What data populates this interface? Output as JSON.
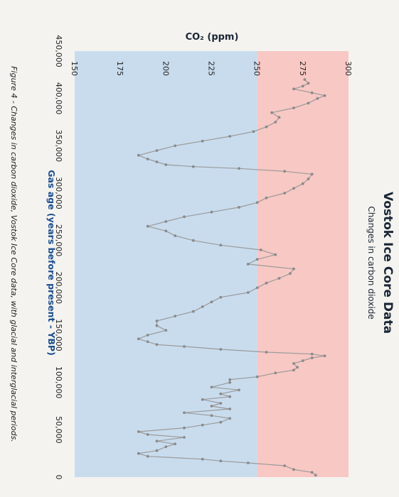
{
  "chart_data": {
    "type": "line",
    "title": "Vostok Ice Core Data",
    "subtitle": "Changes in carbon dioxide",
    "xlabel": "Gas age (years before present - YBP)",
    "ylabel": "CO₂ (ppm)",
    "caption": "Figure 4 - Changes in carbon dioxide, Vostok Ice Core data, with glacial and interglacial periods.",
    "xlim": [
      450000,
      0
    ],
    "ylim": [
      150,
      300
    ],
    "x_ticks": [
      "450,000",
      "400,000",
      "350,000",
      "300,000",
      "250,000",
      "200,000",
      "150,000",
      "100,000",
      "50,000",
      "0"
    ],
    "y_ticks": [
      "150",
      "175",
      "200",
      "225",
      "250",
      "275",
      "300"
    ],
    "grid": false,
    "bands": [
      {
        "name": "interglacial",
        "from": 250,
        "to": 300,
        "color": "#f8c8c4"
      },
      {
        "name": "glacial",
        "from": 150,
        "to": 250,
        "color": "#c9dcee"
      }
    ],
    "line_color": "#9a9a9a",
    "marker_color": "#8a8a8a",
    "series": [
      {
        "x": [
          2000,
          5000,
          8000,
          12000,
          15000,
          17000,
          19000,
          22000,
          25000,
          28000,
          32000,
          35000,
          38000,
          42000,
          45000,
          48000,
          52000,
          55000,
          58000,
          62000,
          65000,
          68000,
          72000,
          75000,
          78000,
          82000,
          85000,
          88000,
          92000,
          95000,
          100000,
          103000,
          106000,
          110000,
          113000,
          116000,
          120000,
          123000,
          126000,
          128000,
          130000,
          132000,
          135000,
          138000,
          140000,
          143000,
          146000,
          150000,
          155000,
          160000,
          165000,
          170000,
          175000,
          180000,
          185000,
          190000,
          195000,
          200000,
          205000,
          210000,
          215000,
          220000,
          225000,
          230000,
          235000,
          240000,
          245000,
          250000,
          255000,
          260000,
          265000,
          270000,
          275000,
          280000,
          285000,
          290000,
          295000,
          300000,
          305000,
          310000,
          315000,
          320000,
          323000,
          326000,
          328000,
          330000,
          333000,
          336000,
          340000,
          345000,
          350000,
          355000,
          360000,
          365000,
          370000,
          375000,
          380000,
          385000,
          390000,
          395000,
          400000,
          403000,
          406000,
          410000,
          413000,
          416000,
          420000
        ],
        "y": [
          282,
          280,
          270,
          265,
          245,
          230,
          220,
          190,
          185,
          195,
          200,
          205,
          195,
          210,
          190,
          185,
          210,
          220,
          230,
          235,
          225,
          210,
          235,
          225,
          230,
          220,
          235,
          230,
          240,
          225,
          235,
          235,
          250,
          260,
          270,
          272,
          270,
          275,
          280,
          287,
          280,
          255,
          230,
          210,
          195,
          190,
          185,
          190,
          200,
          195,
          195,
          205,
          215,
          220,
          225,
          230,
          245,
          250,
          255,
          262,
          268,
          270,
          245,
          250,
          260,
          252,
          230,
          215,
          205,
          200,
          190,
          200,
          210,
          225,
          240,
          250,
          255,
          265,
          270,
          275,
          278,
          280,
          265,
          240,
          215,
          200,
          195,
          190,
          185,
          195,
          205,
          220,
          235,
          248,
          255,
          260,
          262,
          258,
          270,
          278,
          283,
          287,
          280,
          270,
          275,
          278,
          276
        ]
      }
    ]
  }
}
